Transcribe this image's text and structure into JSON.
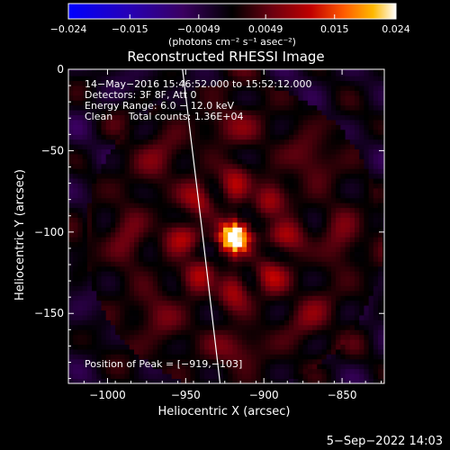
{
  "chart_data": {
    "type": "heatmap",
    "title": "Reconstructed RHESSI Image",
    "xlabel": "Heliocentric X (arcsec)",
    "ylabel": "Heliocentric Y (arcsec)",
    "xlim": [
      -1025,
      -823
    ],
    "ylim": [
      -193,
      0
    ],
    "xticks": [
      -1000,
      -950,
      -900,
      -850
    ],
    "xtick_labels": [
      "−1000",
      "−950",
      "−900",
      "−850"
    ],
    "yticks": [
      0,
      -50,
      -100,
      -150
    ],
    "ytick_labels": [
      "0",
      "−50",
      "−100",
      "−150"
    ],
    "colorbar": {
      "min": -0.024,
      "max": 0.024,
      "ticks": [
        -0.024,
        -0.015,
        -0.0049,
        0.0049,
        0.015,
        0.024
      ],
      "tick_labels": [
        "−0.024",
        "−0.015",
        "−0.0049",
        "0.0049",
        "0.015",
        "0.024"
      ],
      "unit_label": "(photons cm⁻² s⁻¹ asec⁻²)"
    },
    "annotations": [
      "14−May−2016 15:46:52.000 to 15:52:12.000",
      "Detectors: 3F 8F, Att 0",
      "Energy Range: 6.0 − 12.0 keV",
      "Clean     Total counts: 1.36E+04"
    ],
    "peak": {
      "x": -919,
      "y": -103
    },
    "peak_label": "Position of Peak = [−919,−103]",
    "limb_curve": {
      "x": [
        -952,
        -940,
        -928
      ],
      "y": [
        0,
        -95,
        -193
      ]
    }
  },
  "footer_date": "5−Sep−2022 14:03"
}
